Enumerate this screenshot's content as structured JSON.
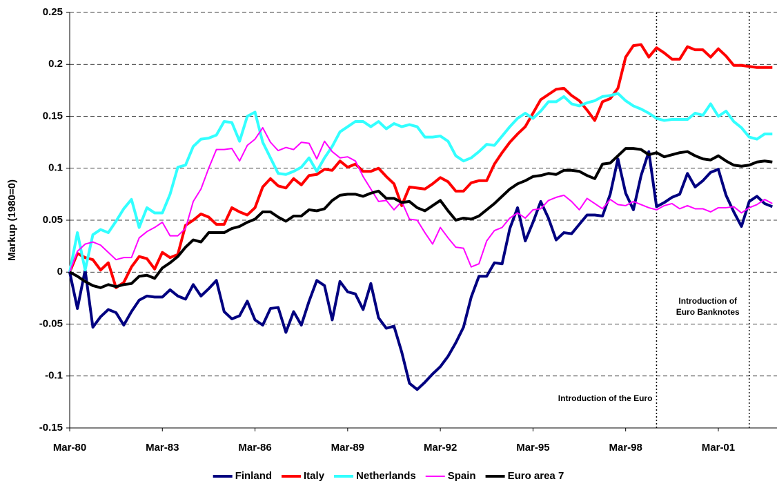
{
  "chart_data": {
    "type": "line",
    "y_label": "Markup (1980=0)",
    "categories": [
      "Mar-80",
      null,
      null,
      null,
      null,
      null,
      null,
      null,
      null,
      null,
      null,
      null,
      "Mar-83",
      null,
      null,
      null,
      null,
      null,
      null,
      null,
      null,
      null,
      null,
      null,
      "Mar-86",
      null,
      null,
      null,
      null,
      null,
      null,
      null,
      null,
      null,
      null,
      null,
      "Mar-89",
      null,
      null,
      null,
      null,
      null,
      null,
      null,
      null,
      null,
      null,
      null,
      "Mar-92",
      null,
      null,
      null,
      null,
      null,
      null,
      null,
      null,
      null,
      null,
      null,
      "Mar-95",
      null,
      null,
      null,
      null,
      null,
      null,
      null,
      null,
      null,
      null,
      null,
      "Mar-98",
      null,
      null,
      null,
      null,
      null,
      null,
      null,
      null,
      null,
      null,
      null,
      "Mar-01",
      null,
      null,
      null,
      null,
      null,
      null,
      null
    ],
    "series": [
      {
        "name": "Finland",
        "color": "#000080",
        "line_width": 4,
        "values": [
          0,
          -0.035,
          0.002,
          -0.053,
          -0.043,
          -0.036,
          -0.039,
          -0.051,
          -0.038,
          -0.027,
          -0.023,
          -0.024,
          -0.024,
          -0.017,
          -0.023,
          -0.026,
          -0.012,
          -0.023,
          -0.016,
          -0.008,
          -0.038,
          -0.045,
          -0.042,
          -0.028,
          -0.046,
          -0.051,
          -0.035,
          -0.034,
          -0.058,
          -0.038,
          -0.051,
          -0.028,
          -0.008,
          -0.013,
          -0.046,
          -0.009,
          -0.019,
          -0.021,
          -0.036,
          -0.011,
          -0.044,
          -0.054,
          -0.052,
          -0.077,
          -0.107,
          -0.113,
          -0.106,
          -0.098,
          -0.091,
          -0.081,
          -0.068,
          -0.053,
          -0.024,
          -0.004,
          -0.004,
          0.009,
          0.008,
          0.042,
          0.062,
          0.03,
          0.048,
          0.068,
          0.052,
          0.031,
          0.038,
          0.037,
          0.046,
          0.055,
          0.055,
          0.054,
          0.075,
          0.109,
          0.076,
          0.06,
          0.093,
          0.116,
          0.063,
          0.067,
          0.072,
          0.075,
          0.095,
          0.082,
          0.088,
          0.096,
          0.099,
          0.074,
          0.058,
          0.044,
          0.068,
          0.073,
          0.066,
          0.063
        ]
      },
      {
        "name": "Italy",
        "color": "#ff0000",
        "line_width": 4,
        "values": [
          0,
          0.018,
          0.014,
          0.012,
          0.002,
          0.009,
          -0.015,
          -0.01,
          0.005,
          0.015,
          0.013,
          0.003,
          0.019,
          0.014,
          0.017,
          0.045,
          0.05,
          0.056,
          0.053,
          0.046,
          0.046,
          0.062,
          0.058,
          0.055,
          0.062,
          0.082,
          0.09,
          0.083,
          0.081,
          0.09,
          0.084,
          0.093,
          0.094,
          0.099,
          0.098,
          0.107,
          0.101,
          0.104,
          0.097,
          0.097,
          0.1,
          0.092,
          0.085,
          0.064,
          0.082,
          0.081,
          0.08,
          0.085,
          0.091,
          0.087,
          0.078,
          0.078,
          0.086,
          0.088,
          0.088,
          0.104,
          0.115,
          0.125,
          0.133,
          0.14,
          0.153,
          0.166,
          0.171,
          0.176,
          0.177,
          0.17,
          0.165,
          0.156,
          0.146,
          0.164,
          0.167,
          0.177,
          0.207,
          0.218,
          0.219,
          0.207,
          0.216,
          0.211,
          0.205,
          0.205,
          0.217,
          0.214,
          0.214,
          0.207,
          0.215,
          0.208,
          0.199,
          0.199,
          0.198,
          0.197,
          0.197,
          0.197
        ]
      },
      {
        "name": "Netherlands",
        "color": "#33ffff",
        "line_width": 4,
        "values": [
          0,
          0.038,
          0.002,
          0.036,
          0.041,
          0.038,
          0.049,
          0.061,
          0.07,
          0.043,
          0.062,
          0.057,
          0.057,
          0.075,
          0.101,
          0.103,
          0.121,
          0.128,
          0.129,
          0.132,
          0.145,
          0.144,
          0.126,
          0.15,
          0.154,
          0.125,
          0.11,
          0.095,
          0.094,
          0.097,
          0.101,
          0.11,
          0.097,
          0.11,
          0.121,
          0.135,
          0.14,
          0.145,
          0.145,
          0.14,
          0.145,
          0.138,
          0.143,
          0.14,
          0.142,
          0.14,
          0.13,
          0.13,
          0.131,
          0.126,
          0.112,
          0.107,
          0.11,
          0.116,
          0.123,
          0.122,
          0.131,
          0.14,
          0.148,
          0.153,
          0.148,
          0.155,
          0.164,
          0.164,
          0.169,
          0.162,
          0.16,
          0.163,
          0.165,
          0.169,
          0.17,
          0.172,
          0.165,
          0.16,
          0.157,
          0.153,
          0.148,
          0.146,
          0.147,
          0.147,
          0.147,
          0.153,
          0.151,
          0.162,
          0.15,
          0.155,
          0.145,
          0.139,
          0.13,
          0.128,
          0.133,
          0.133
        ]
      },
      {
        "name": "Spain",
        "color": "#ff00ff",
        "line_width": 2,
        "values": [
          0,
          0.02,
          0.027,
          0.029,
          0.026,
          0.019,
          0.012,
          0.014,
          0.014,
          0.033,
          0.039,
          0.043,
          0.048,
          0.035,
          0.035,
          0.042,
          0.068,
          0.08,
          0.1,
          0.118,
          0.118,
          0.119,
          0.107,
          0.122,
          0.128,
          0.139,
          0.125,
          0.117,
          0.12,
          0.118,
          0.125,
          0.124,
          0.109,
          0.126,
          0.116,
          0.11,
          0.111,
          0.107,
          0.092,
          0.08,
          0.068,
          0.069,
          0.06,
          0.068,
          0.051,
          0.05,
          0.038,
          0.027,
          0.043,
          0.033,
          0.024,
          0.023,
          0.005,
          0.008,
          0.03,
          0.04,
          0.043,
          0.052,
          0.057,
          0.052,
          0.06,
          0.061,
          0.069,
          0.072,
          0.074,
          0.068,
          0.06,
          0.071,
          0.066,
          0.061,
          0.07,
          0.065,
          0.064,
          0.068,
          0.065,
          0.062,
          0.06,
          0.064,
          0.066,
          0.061,
          0.064,
          0.061,
          0.061,
          0.058,
          0.062,
          0.062,
          0.063,
          0.057,
          0.062,
          0.065,
          0.07,
          0.066
        ]
      },
      {
        "name": "Euro area 7",
        "color": "#000000",
        "line_width": 4,
        "values": [
          0,
          -0.004,
          -0.009,
          -0.013,
          -0.015,
          -0.012,
          -0.014,
          -0.012,
          -0.011,
          -0.004,
          -0.003,
          -0.006,
          0.004,
          0.009,
          0.015,
          0.024,
          0.031,
          0.029,
          0.038,
          0.038,
          0.038,
          0.042,
          0.044,
          0.048,
          0.051,
          0.058,
          0.058,
          0.053,
          0.049,
          0.054,
          0.054,
          0.06,
          0.059,
          0.061,
          0.069,
          0.074,
          0.075,
          0.075,
          0.073,
          0.076,
          0.078,
          0.071,
          0.071,
          0.067,
          0.068,
          0.062,
          0.059,
          0.064,
          0.069,
          0.059,
          0.05,
          0.052,
          0.051,
          0.054,
          0.06,
          0.066,
          0.073,
          0.08,
          0.085,
          0.088,
          0.092,
          0.093,
          0.095,
          0.094,
          0.098,
          0.098,
          0.097,
          0.093,
          0.09,
          0.104,
          0.105,
          0.112,
          0.119,
          0.119,
          0.118,
          0.113,
          0.115,
          0.111,
          0.113,
          0.115,
          0.116,
          0.112,
          0.109,
          0.108,
          0.112,
          0.107,
          0.103,
          0.102,
          0.103,
          0.106,
          0.107,
          0.106
        ]
      }
    ],
    "ylim": [
      -0.15,
      0.25
    ],
    "yticks": [
      -0.15,
      -0.1,
      -0.05,
      0,
      0.05,
      0.1,
      0.15,
      0.2,
      0.25
    ],
    "grid": true,
    "legend": "bottom",
    "annotations": [
      {
        "at": 76,
        "text": [
          "Introduction of the Euro"
        ]
      },
      {
        "at": 88,
        "text": [
          "Introduction of",
          "Euro Banknotes"
        ]
      }
    ]
  }
}
